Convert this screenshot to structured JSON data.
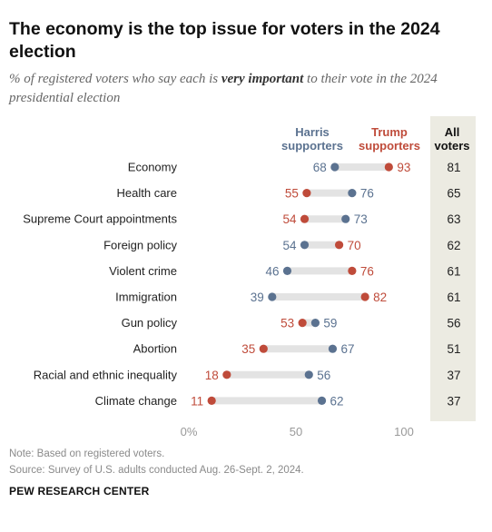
{
  "title": "The economy is the top issue for voters in the 2024 election",
  "subtitle": {
    "prefix": "% of registered voters who say each is ",
    "emphasis": "very important",
    "suffix": " to their vote in the 2024 presidential election"
  },
  "colors": {
    "harris": "#5b7290",
    "trump": "#bf4b3a",
    "bar": "#e3e3e3",
    "all_column": "#ecebe2"
  },
  "chart_data": {
    "type": "dot",
    "categories": [
      "Economy",
      "Health care",
      "Supreme Court appointments",
      "Foreign policy",
      "Violent crime",
      "Immigration",
      "Gun policy",
      "Abortion",
      "Racial and ethnic inequality",
      "Climate change"
    ],
    "series": [
      {
        "name": "Harris supporters",
        "values": [
          68,
          76,
          73,
          54,
          46,
          39,
          59,
          67,
          56,
          62
        ]
      },
      {
        "name": "Trump supporters",
        "values": [
          93,
          55,
          54,
          70,
          76,
          82,
          53,
          35,
          18,
          11
        ]
      }
    ],
    "all_voters": {
      "name": "All voters",
      "values": [
        81,
        65,
        63,
        62,
        61,
        61,
        56,
        51,
        37,
        37
      ]
    },
    "x_ticks": [
      "0%",
      "50",
      "100"
    ],
    "xlim": [
      0,
      100
    ]
  },
  "legend": {
    "harris_label": "Harris supporters",
    "trump_label": "Trump supporters",
    "all_label": "All voters"
  },
  "note": "Note: Based on registered voters.",
  "source": "Source: Survey of U.S. adults conducted Aug. 26-Sept. 2, 2024.",
  "footer": "PEW RESEARCH CENTER"
}
